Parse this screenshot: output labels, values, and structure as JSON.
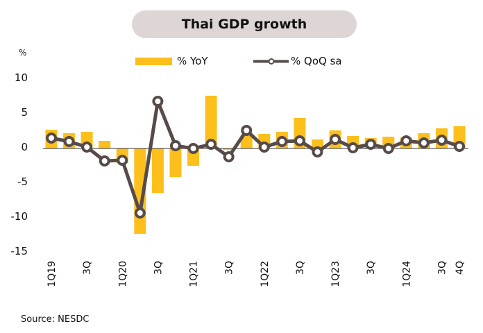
{
  "chart_data": {
    "type": "bar",
    "title": "Thai GDP growth",
    "ylabel": "%",
    "xlabel": "",
    "ylim": [
      -15,
      10
    ],
    "yticks": [
      10,
      5,
      0,
      -5,
      -10,
      -15
    ],
    "categories": [
      "1Q19",
      "2Q19",
      "3Q19",
      "4Q19",
      "1Q20",
      "2Q20",
      "3Q20",
      "4Q20",
      "1Q21",
      "2Q21",
      "3Q21",
      "4Q21",
      "1Q22",
      "2Q22",
      "3Q22",
      "4Q22",
      "1Q23",
      "2Q23",
      "3Q23",
      "4Q23",
      "1Q24",
      "2Q24",
      "3Q24",
      "4Q24"
    ],
    "xtick_labels": [
      "1Q19",
      "",
      "3Q",
      "",
      "1Q20",
      "",
      "3Q",
      "",
      "1Q21",
      "",
      "3Q",
      "",
      "1Q22",
      "",
      "3Q",
      "",
      "1Q23",
      "",
      "3Q",
      "",
      "1Q24",
      "",
      "3Q",
      "4Q"
    ],
    "series": [
      {
        "name": "%  YoY",
        "type": "bar",
        "color": "#fdbf1c",
        "values": [
          2.7,
          2.2,
          2.4,
          1.1,
          -2.1,
          -12.3,
          -6.4,
          -4.1,
          -2.5,
          7.6,
          -0.2,
          2.0,
          2.1,
          2.4,
          4.4,
          1.3,
          2.6,
          1.8,
          1.5,
          1.7,
          1.6,
          2.2,
          2.9,
          3.2
        ]
      },
      {
        "name": "% QoQ sa",
        "type": "line",
        "color": "#574b4a",
        "values": [
          1.5,
          1.0,
          0.2,
          -1.8,
          -1.7,
          -9.3,
          6.8,
          0.4,
          0.0,
          0.6,
          -1.2,
          2.6,
          0.2,
          1.0,
          1.1,
          -0.5,
          1.3,
          0.1,
          0.6,
          0.0,
          1.1,
          0.8,
          1.2,
          0.3
        ]
      }
    ],
    "legend": "top-center",
    "grid": false
  },
  "source": "Source: NESDC"
}
